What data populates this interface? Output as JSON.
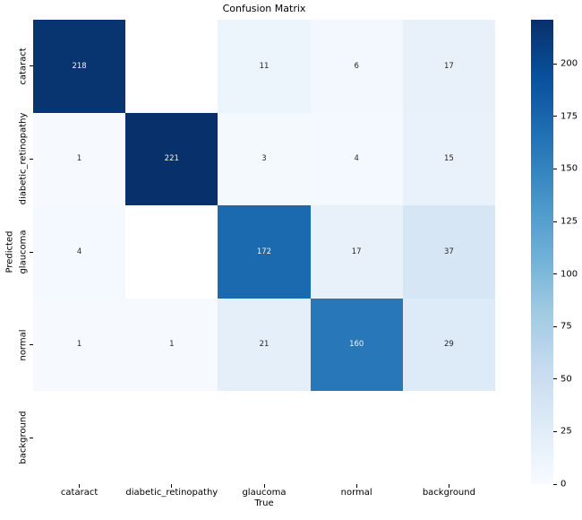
{
  "chart_data": {
    "type": "heatmap",
    "title": "Confusion Matrix",
    "xlabel": "True",
    "ylabel": "Predicted",
    "x_categories": [
      "cataract",
      "diabetic_retinopathy",
      "glaucoma",
      "normal",
      "background"
    ],
    "y_categories": [
      "cataract",
      "diabetic_retinopathy",
      "glaucoma",
      "normal",
      "background"
    ],
    "rows": [
      [
        218,
        null,
        11,
        6,
        17
      ],
      [
        1,
        221,
        3,
        4,
        15
      ],
      [
        4,
        null,
        172,
        17,
        37
      ],
      [
        1,
        1,
        21,
        160,
        29
      ],
      [
        null,
        null,
        null,
        null,
        null
      ]
    ],
    "vmin": 0,
    "vmax": 221,
    "colormap": "Blues",
    "colorbar_ticks": [
      0,
      25,
      50,
      75,
      100,
      125,
      150,
      175,
      200
    ],
    "legend_position": "right-colorbar",
    "grid": false
  },
  "colors": {
    "colormap_anchors": [
      "#f7fbff",
      "#deebf7",
      "#c6dbef",
      "#9ecae1",
      "#6baed6",
      "#4292c6",
      "#2171b5",
      "#08519c",
      "#08306b"
    ],
    "empty_cell": "#ffffff",
    "annotation_light": "#f2f2f2",
    "annotation_dark": "#262626",
    "tick_color": "#000000",
    "background": "#ffffff"
  }
}
